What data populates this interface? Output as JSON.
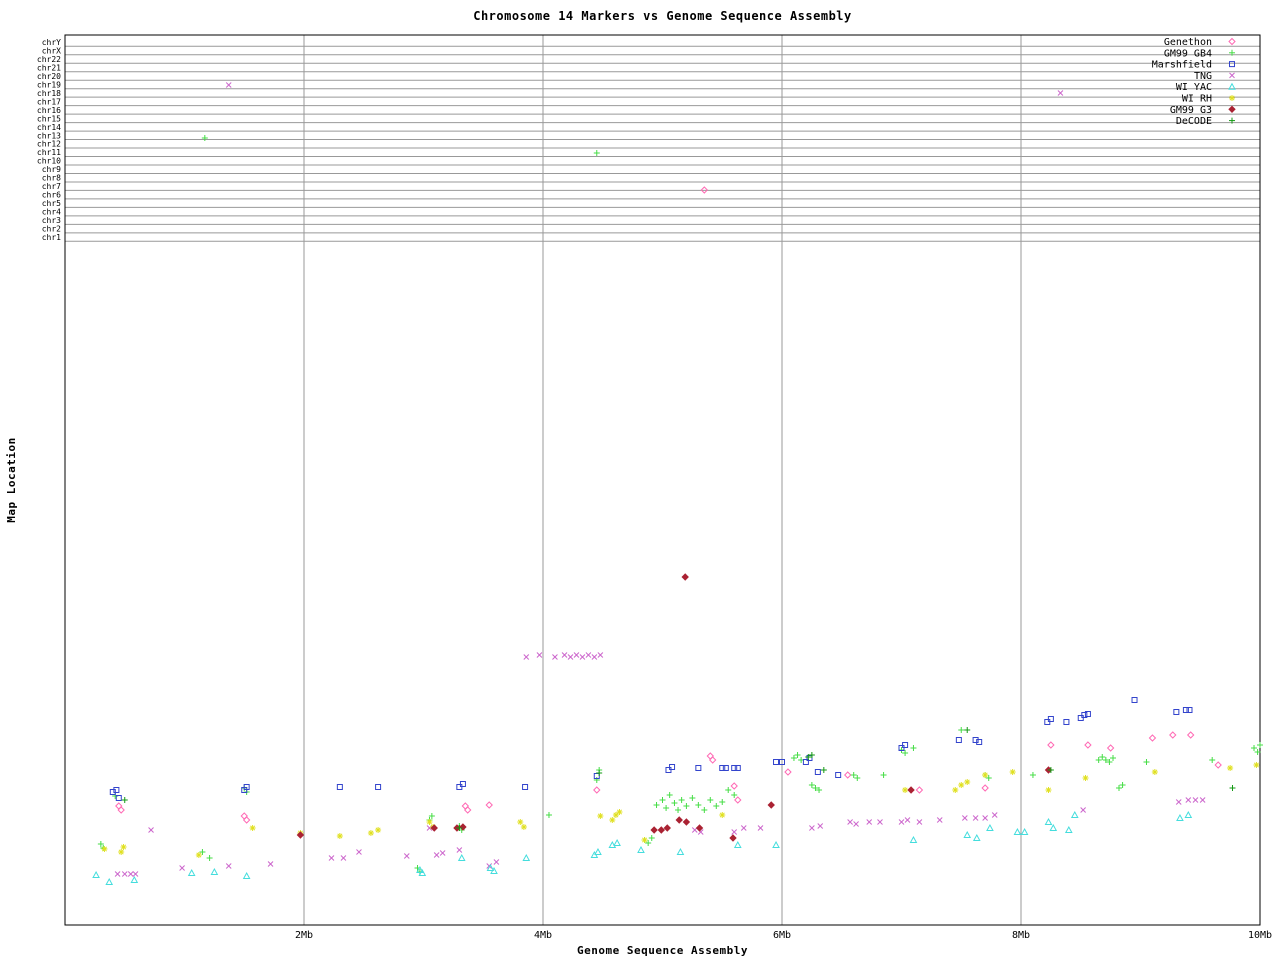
{
  "title": "Chromosome 14 Markers vs Genome Sequence Assembly",
  "x_axis": {
    "label": "Genome Sequence Assembly",
    "ticks": [
      "2Mb",
      "4Mb",
      "6Mb",
      "8Mb",
      "10Mb"
    ],
    "tick_values_mb": [
      2,
      4,
      6,
      8,
      10
    ]
  },
  "y_axis": {
    "label": "Map Location",
    "chromosome_rows": [
      "chrY",
      "chrX",
      "chr22",
      "chr21",
      "chr20",
      "chr19",
      "chr18",
      "chr17",
      "chr16",
      "chr15",
      "chr14",
      "chr13",
      "chr12",
      "chr11",
      "chr10",
      "chr9",
      "chr8",
      "chr7",
      "chr6",
      "chr5",
      "chr4",
      "chr3",
      "chr2",
      "chr1"
    ]
  },
  "chart_data": {
    "type": "scatter",
    "title": "Chromosome 14 Markers vs Genome Sequence Assembly",
    "xlabel": "Genome Sequence Assembly",
    "ylabel": "Map Location",
    "x_range_mb": [
      0,
      10
    ],
    "grid": true,
    "legend_position": "top-right",
    "y_note": "y values are vertical screen positions in px (image top = 0). Rows chrY..chr1 occupy y 42-241; the large lower region is the unlabeled chr14 map-location scale. x values are Mb on the assembly axis.",
    "series": [
      {
        "name": "Genethon",
        "marker": "diamond-open",
        "color": "#ff69b4",
        "points": [
          [
            5.35,
            190
          ],
          [
            0.45,
            806
          ],
          [
            0.47,
            810
          ],
          [
            1.5,
            816
          ],
          [
            1.52,
            820
          ],
          [
            3.35,
            806
          ],
          [
            3.37,
            810
          ],
          [
            3.55,
            805
          ],
          [
            4.45,
            790
          ],
          [
            5.4,
            756
          ],
          [
            5.42,
            760
          ],
          [
            5.6,
            786
          ],
          [
            5.63,
            800
          ],
          [
            6.05,
            772
          ],
          [
            6.55,
            775
          ],
          [
            7.15,
            790
          ],
          [
            7.7,
            788
          ],
          [
            8.25,
            745
          ],
          [
            8.56,
            745
          ],
          [
            8.75,
            748
          ],
          [
            9.1,
            738
          ],
          [
            9.27,
            735
          ],
          [
            9.42,
            735
          ],
          [
            9.65,
            765
          ]
        ]
      },
      {
        "name": "GM99 GB4",
        "marker": "plus",
        "color": "#44dd44",
        "points": [
          [
            1.17,
            138
          ],
          [
            4.45,
            153
          ],
          [
            0.3,
            844
          ],
          [
            0.32,
            848
          ],
          [
            0.42,
            796
          ],
          [
            1.15,
            852
          ],
          [
            1.21,
            858
          ],
          [
            1.5,
            788
          ],
          [
            1.52,
            792
          ],
          [
            2.95,
            868
          ],
          [
            2.97,
            872
          ],
          [
            3.05,
            820
          ],
          [
            3.07,
            816
          ],
          [
            3.3,
            826
          ],
          [
            3.32,
            830
          ],
          [
            4.05,
            815
          ],
          [
            4.45,
            780
          ],
          [
            4.47,
            770
          ],
          [
            4.85,
            840
          ],
          [
            4.88,
            843
          ],
          [
            4.91,
            838
          ],
          [
            4.95,
            805
          ],
          [
            5.0,
            800
          ],
          [
            5.03,
            808
          ],
          [
            5.06,
            795
          ],
          [
            5.1,
            803
          ],
          [
            5.13,
            810
          ],
          [
            5.16,
            800
          ],
          [
            5.2,
            806
          ],
          [
            5.25,
            798
          ],
          [
            5.3,
            805
          ],
          [
            5.35,
            810
          ],
          [
            5.4,
            800
          ],
          [
            5.45,
            806
          ],
          [
            5.5,
            802
          ],
          [
            5.55,
            790
          ],
          [
            5.6,
            795
          ],
          [
            6.1,
            758
          ],
          [
            6.13,
            755
          ],
          [
            6.16,
            760
          ],
          [
            6.25,
            785
          ],
          [
            6.28,
            788
          ],
          [
            6.31,
            790
          ],
          [
            6.6,
            775
          ],
          [
            6.63,
            778
          ],
          [
            6.85,
            775
          ],
          [
            7.0,
            750
          ],
          [
            7.03,
            753
          ],
          [
            7.1,
            748
          ],
          [
            7.5,
            730
          ],
          [
            7.7,
            775
          ],
          [
            7.73,
            778
          ],
          [
            8.1,
            775
          ],
          [
            8.65,
            760
          ],
          [
            8.68,
            757
          ],
          [
            8.71,
            760
          ],
          [
            8.74,
            762
          ],
          [
            8.77,
            758
          ],
          [
            8.82,
            788
          ],
          [
            8.85,
            785
          ],
          [
            9.05,
            762
          ],
          [
            9.6,
            760
          ],
          [
            9.95,
            748
          ],
          [
            9.98,
            752
          ],
          [
            10.0,
            745
          ]
        ]
      },
      {
        "name": "Marshfield",
        "marker": "square-open",
        "color": "#3344cc",
        "points": [
          [
            0.4,
            792
          ],
          [
            0.43,
            790
          ],
          [
            0.45,
            798
          ],
          [
            1.5,
            790
          ],
          [
            1.52,
            787
          ],
          [
            2.3,
            787
          ],
          [
            2.62,
            787
          ],
          [
            3.3,
            787
          ],
          [
            3.33,
            784
          ],
          [
            3.85,
            787
          ],
          [
            4.45,
            776
          ],
          [
            5.05,
            770
          ],
          [
            5.08,
            767
          ],
          [
            5.3,
            768
          ],
          [
            5.5,
            768
          ],
          [
            5.53,
            768
          ],
          [
            5.6,
            768
          ],
          [
            5.63,
            768
          ],
          [
            5.95,
            762
          ],
          [
            6.0,
            762
          ],
          [
            6.2,
            762
          ],
          [
            6.23,
            758
          ],
          [
            6.3,
            772
          ],
          [
            6.47,
            775
          ],
          [
            7.0,
            748
          ],
          [
            7.03,
            745
          ],
          [
            7.48,
            740
          ],
          [
            7.62,
            740
          ],
          [
            7.65,
            742
          ],
          [
            8.22,
            722
          ],
          [
            8.25,
            719
          ],
          [
            8.38,
            722
          ],
          [
            8.5,
            718
          ],
          [
            8.53,
            715
          ],
          [
            8.56,
            714
          ],
          [
            8.95,
            700
          ],
          [
            9.3,
            712
          ],
          [
            9.38,
            710
          ],
          [
            9.41,
            710
          ]
        ]
      },
      {
        "name": "TNG",
        "marker": "x-cross",
        "color": "#cc66cc",
        "points": [
          [
            1.37,
            85
          ],
          [
            8.33,
            93
          ],
          [
            3.86,
            657
          ],
          [
            3.97,
            655
          ],
          [
            4.1,
            657
          ],
          [
            4.18,
            655
          ],
          [
            4.23,
            657
          ],
          [
            4.28,
            655
          ],
          [
            4.33,
            657
          ],
          [
            4.38,
            655
          ],
          [
            4.43,
            657
          ],
          [
            4.48,
            655
          ],
          [
            0.44,
            874
          ],
          [
            0.5,
            874
          ],
          [
            0.55,
            874
          ],
          [
            0.59,
            874
          ],
          [
            0.72,
            830
          ],
          [
            0.98,
            868
          ],
          [
            1.37,
            866
          ],
          [
            1.72,
            864
          ],
          [
            2.23,
            858
          ],
          [
            2.33,
            858
          ],
          [
            2.46,
            852
          ],
          [
            2.86,
            856
          ],
          [
            3.05,
            828
          ],
          [
            3.11,
            855
          ],
          [
            3.16,
            853
          ],
          [
            3.3,
            850
          ],
          [
            3.55,
            866
          ],
          [
            3.61,
            862
          ],
          [
            5.27,
            830
          ],
          [
            5.32,
            832
          ],
          [
            5.6,
            832
          ],
          [
            5.68,
            828
          ],
          [
            5.82,
            828
          ],
          [
            6.25,
            828
          ],
          [
            6.32,
            826
          ],
          [
            6.57,
            822
          ],
          [
            6.62,
            824
          ],
          [
            6.73,
            822
          ],
          [
            6.82,
            822
          ],
          [
            7.0,
            822
          ],
          [
            7.05,
            820
          ],
          [
            7.15,
            822
          ],
          [
            7.32,
            820
          ],
          [
            7.53,
            818
          ],
          [
            7.62,
            818
          ],
          [
            7.7,
            818
          ],
          [
            7.78,
            815
          ],
          [
            8.52,
            810
          ],
          [
            9.32,
            802
          ],
          [
            9.4,
            800
          ],
          [
            9.46,
            800
          ],
          [
            9.52,
            800
          ]
        ]
      },
      {
        "name": "WI YAC",
        "marker": "triangle-open",
        "color": "#44dddd",
        "points": [
          [
            0.26,
            875
          ],
          [
            0.37,
            882
          ],
          [
            0.58,
            880
          ],
          [
            1.06,
            873
          ],
          [
            1.25,
            872
          ],
          [
            1.52,
            876
          ],
          [
            2.97,
            870
          ],
          [
            2.99,
            873
          ],
          [
            3.32,
            858
          ],
          [
            3.56,
            868
          ],
          [
            3.59,
            871
          ],
          [
            3.86,
            858
          ],
          [
            4.43,
            855
          ],
          [
            4.46,
            852
          ],
          [
            4.58,
            845
          ],
          [
            4.62,
            843
          ],
          [
            4.82,
            850
          ],
          [
            5.15,
            852
          ],
          [
            5.63,
            845
          ],
          [
            5.95,
            845
          ],
          [
            7.1,
            840
          ],
          [
            7.55,
            835
          ],
          [
            7.63,
            838
          ],
          [
            7.74,
            828
          ],
          [
            7.97,
            832
          ],
          [
            8.03,
            832
          ],
          [
            8.23,
            822
          ],
          [
            8.27,
            828
          ],
          [
            8.4,
            830
          ],
          [
            8.45,
            815
          ],
          [
            9.33,
            818
          ],
          [
            9.4,
            815
          ]
        ]
      },
      {
        "name": "WI RH",
        "marker": "star",
        "color": "#e0e020",
        "points": [
          [
            0.33,
            849
          ],
          [
            0.47,
            852
          ],
          [
            0.49,
            847
          ],
          [
            1.12,
            855
          ],
          [
            1.57,
            828
          ],
          [
            1.97,
            833
          ],
          [
            2.3,
            836
          ],
          [
            2.56,
            833
          ],
          [
            2.62,
            830
          ],
          [
            3.05,
            822
          ],
          [
            3.08,
            827
          ],
          [
            3.81,
            822
          ],
          [
            3.84,
            827
          ],
          [
            4.48,
            816
          ],
          [
            4.58,
            820
          ],
          [
            4.61,
            815
          ],
          [
            4.64,
            812
          ],
          [
            4.85,
            840
          ],
          [
            5.5,
            815
          ],
          [
            7.03,
            790
          ],
          [
            7.45,
            790
          ],
          [
            7.5,
            785
          ],
          [
            7.55,
            782
          ],
          [
            7.7,
            775
          ],
          [
            7.93,
            772
          ],
          [
            8.23,
            790
          ],
          [
            8.54,
            778
          ],
          [
            9.12,
            772
          ],
          [
            9.75,
            768
          ],
          [
            9.97,
            765
          ]
        ]
      },
      {
        "name": "GM99 G3",
        "marker": "diamond-filled",
        "color": "#aa2233",
        "points": [
          [
            5.19,
            577
          ],
          [
            1.97,
            835
          ],
          [
            3.09,
            828
          ],
          [
            3.28,
            828
          ],
          [
            3.33,
            827
          ],
          [
            4.93,
            830
          ],
          [
            4.99,
            830
          ],
          [
            5.04,
            828
          ],
          [
            5.14,
            820
          ],
          [
            5.2,
            822
          ],
          [
            5.31,
            828
          ],
          [
            5.59,
            838
          ],
          [
            5.91,
            805
          ],
          [
            7.08,
            790
          ],
          [
            8.23,
            770
          ]
        ]
      },
      {
        "name": "DeCODE",
        "marker": "plus",
        "color": "#119911",
        "points": [
          [
            0.5,
            800
          ],
          [
            3.3,
            828
          ],
          [
            4.47,
            773
          ],
          [
            6.22,
            757
          ],
          [
            6.25,
            755
          ],
          [
            6.35,
            770
          ],
          [
            7.55,
            730
          ],
          [
            8.25,
            770
          ],
          [
            9.77,
            788
          ]
        ]
      }
    ]
  }
}
